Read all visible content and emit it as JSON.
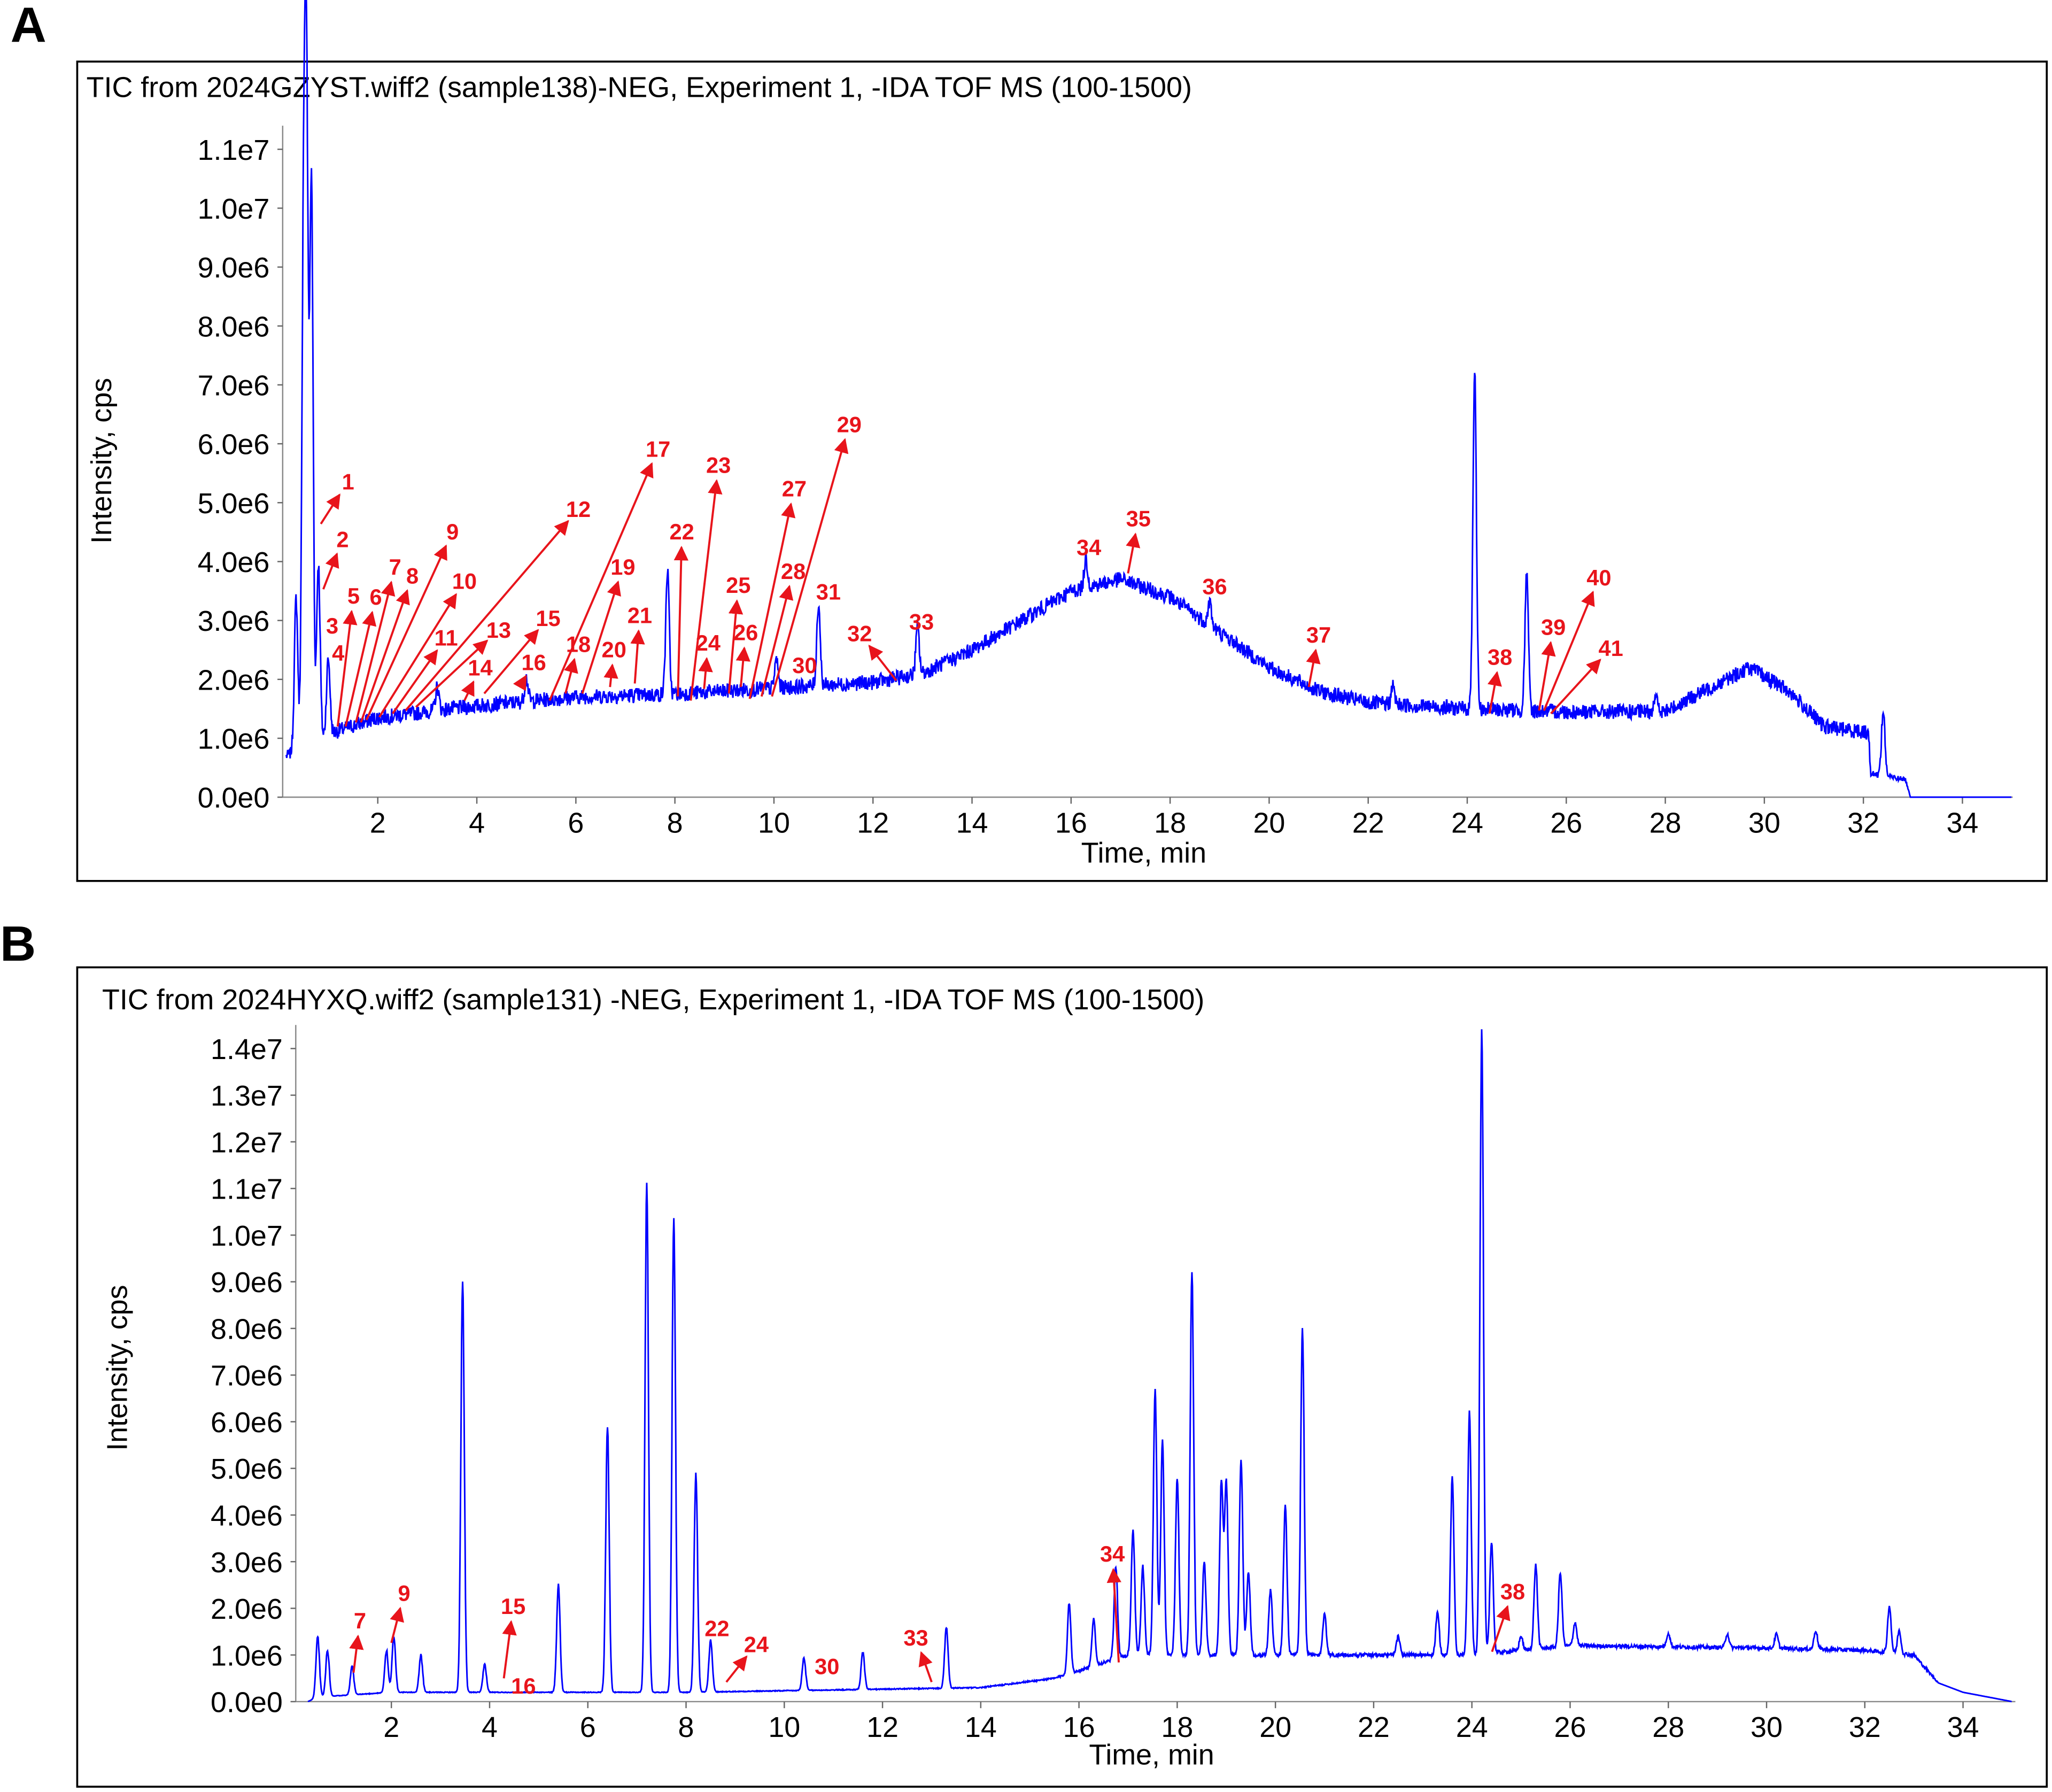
{
  "colors": {
    "trace": "#0000ff",
    "annotation": "#e8141b",
    "frame": "#000000"
  },
  "chart_data": [
    {
      "type": "line",
      "panel_label": "A",
      "title": "TIC from 2024GZYST.wiff2 (sample138)-NEG, Experiment 1, -IDA TOF MS (100-1500)",
      "xlabel": "Time, min",
      "ylabel": "Intensity, cps",
      "xlim": [
        0,
        35
      ],
      "ylim": [
        0,
        11000000.0
      ],
      "xticks": [
        2,
        4,
        6,
        8,
        10,
        12,
        14,
        16,
        18,
        20,
        22,
        24,
        26,
        28,
        30,
        32,
        34
      ],
      "yticks": [
        0,
        1000000.0,
        2000000.0,
        3000000.0,
        4000000.0,
        5000000.0,
        6000000.0,
        7000000.0,
        8000000.0,
        9000000.0,
        10000000.0,
        11000000.0
      ],
      "ytick_labels": [
        "0.0e0",
        "1.0e6",
        "2.0e6",
        "3.0e6",
        "4.0e6",
        "5.0e6",
        "6.0e6",
        "7.0e6",
        "8.0e6",
        "9.0e6",
        "1.0e7",
        "1.1e7"
      ],
      "grid": false,
      "baseline_e6": [
        [
          0.15,
          0.7
        ],
        [
          0.4,
          0.8
        ],
        [
          1.1,
          1.1
        ],
        [
          2,
          1.35
        ],
        [
          4,
          1.55
        ],
        [
          6,
          1.7
        ],
        [
          8,
          1.75
        ],
        [
          10,
          1.85
        ],
        [
          12,
          1.95
        ],
        [
          13,
          2.1
        ],
        [
          14,
          2.5
        ],
        [
          15,
          3.0
        ],
        [
          16,
          3.5
        ],
        [
          17,
          3.7
        ],
        [
          18,
          3.4
        ],
        [
          19,
          2.8
        ],
        [
          20,
          2.2
        ],
        [
          21,
          1.8
        ],
        [
          22,
          1.6
        ],
        [
          24,
          1.5
        ],
        [
          26,
          1.45
        ],
        [
          28,
          1.45
        ],
        [
          29,
          1.9
        ],
        [
          29.7,
          2.2
        ],
        [
          30.5,
          1.8
        ],
        [
          31.2,
          1.2
        ],
        [
          32.1,
          1.1
        ],
        [
          32.15,
          0.4
        ],
        [
          32.85,
          0.3
        ],
        [
          32.95,
          0
        ],
        [
          35,
          0
        ]
      ],
      "peaks_e6": [
        [
          0.35,
          2.6
        ],
        [
          0.5,
          7.9
        ],
        [
          0.56,
          10.6
        ],
        [
          0.66,
          9.5
        ],
        [
          0.8,
          3.0
        ],
        [
          1.0,
          1.3
        ],
        [
          3.2,
          0.4
        ],
        [
          5.0,
          0.4
        ],
        [
          7.85,
          2.1
        ],
        [
          10.05,
          0.5
        ],
        [
          10.9,
          1.4
        ],
        [
          12.9,
          0.8
        ],
        [
          16.3,
          0.5
        ],
        [
          18.8,
          0.4
        ],
        [
          22.5,
          0.3
        ],
        [
          24.15,
          5.8
        ],
        [
          25.2,
          2.3
        ],
        [
          27.8,
          0.3
        ],
        [
          32.4,
          1.1
        ]
      ],
      "annotations": [
        {
          "label": "1",
          "at": [
            1.4,
            5.36
          ],
          "from": [
            0.85,
            4.64
          ]
        },
        {
          "label": "2",
          "at": [
            1.29,
            4.38
          ],
          "from": [
            0.9,
            3.53
          ]
        },
        {
          "label": "3",
          "at": [
            1.08,
            2.91
          ]
        },
        {
          "label": "4",
          "at": [
            1.2,
            2.45
          ]
        },
        {
          "label": "5",
          "at": [
            1.51,
            3.42
          ],
          "from": [
            1.19,
            1.2
          ]
        },
        {
          "label": "6",
          "at": [
            1.96,
            3.4
          ],
          "from": [
            1.35,
            1.2
          ]
        },
        {
          "label": "7",
          "at": [
            2.35,
            3.91
          ],
          "from": [
            1.56,
            1.27
          ]
        },
        {
          "label": "8",
          "at": [
            2.7,
            3.76
          ],
          "from": [
            1.66,
            1.27
          ]
        },
        {
          "label": "9",
          "at": [
            3.51,
            4.51
          ],
          "from": [
            1.77,
            1.31
          ]
        },
        {
          "label": "10",
          "at": [
            3.75,
            3.67
          ],
          "from": [
            2.03,
            1.36
          ]
        },
        {
          "label": "11",
          "at": [
            3.38,
            2.71
          ],
          "from": [
            2.3,
            1.42
          ]
        },
        {
          "label": "12",
          "at": [
            6.05,
            4.89
          ],
          "from": [
            2.56,
            1.47
          ]
        },
        {
          "label": "13",
          "at": [
            4.44,
            2.84
          ],
          "from": [
            2.77,
            1.53
          ]
        },
        {
          "label": "14",
          "at": [
            4.07,
            2.2
          ],
          "from": [
            3.75,
            1.64
          ]
        },
        {
          "label": "15",
          "at": [
            5.44,
            3.04
          ],
          "from": [
            4.15,
            1.76
          ]
        },
        {
          "label": "16",
          "at": [
            5.15,
            2.29
          ],
          "from": [
            4.94,
            1.98
          ]
        },
        {
          "label": "17",
          "at": [
            7.66,
            5.91
          ],
          "from": [
            5.47,
            1.64
          ]
        },
        {
          "label": "18",
          "at": [
            6.05,
            2.6
          ],
          "from": [
            5.79,
            1.76
          ]
        },
        {
          "label": "19",
          "at": [
            6.95,
            3.91
          ],
          "from": [
            6.13,
            1.76
          ]
        },
        {
          "label": "20",
          "at": [
            6.77,
            2.51
          ],
          "from": [
            6.69,
            1.87
          ]
        },
        {
          "label": "21",
          "at": [
            7.29,
            3.09
          ],
          "from": [
            7.19,
            1.93
          ]
        },
        {
          "label": "22",
          "at": [
            8.14,
            4.51
          ],
          "from": [
            8.06,
            1.71
          ]
        },
        {
          "label": "23",
          "at": [
            8.88,
            5.64
          ],
          "from": [
            8.32,
            1.64
          ]
        },
        {
          "label": "24",
          "at": [
            8.67,
            2.62
          ],
          "from": [
            8.59,
            1.84
          ]
        },
        {
          "label": "25",
          "at": [
            9.28,
            3.6
          ],
          "from": [
            9.09,
            1.76
          ]
        },
        {
          "label": "26",
          "at": [
            9.43,
            2.8
          ],
          "from": [
            9.33,
            1.87
          ]
        },
        {
          "label": "27",
          "at": [
            10.41,
            5.24
          ],
          "from": [
            9.51,
            1.67
          ]
        },
        {
          "label": "28",
          "at": [
            10.39,
            3.84
          ],
          "from": [
            9.75,
            1.71
          ]
        },
        {
          "label": "29",
          "at": [
            11.52,
            6.33
          ],
          "from": [
            9.96,
            1.71
          ]
        },
        {
          "label": "30",
          "at": [
            10.62,
            2.24
          ]
        },
        {
          "label": "31",
          "at": [
            11.1,
            3.49
          ]
        },
        {
          "label": "32",
          "at": [
            11.73,
            2.78
          ],
          "from": [
            12.47,
            1.98
          ]
        },
        {
          "label": "33",
          "at": [
            12.98,
            2.98
          ]
        },
        {
          "label": "34",
          "at": [
            16.36,
            4.24
          ]
        },
        {
          "label": "35",
          "at": [
            17.36,
            4.73
          ],
          "from": [
            17.15,
            3.8
          ]
        },
        {
          "label": "36",
          "at": [
            18.9,
            3.58
          ]
        },
        {
          "label": "37",
          "at": [
            21.0,
            2.76
          ],
          "from": [
            20.8,
            1.87
          ]
        },
        {
          "label": "38",
          "at": [
            24.66,
            2.38
          ],
          "from": [
            24.45,
            1.42
          ]
        },
        {
          "label": "39",
          "at": [
            25.74,
            2.89
          ],
          "from": [
            25.45,
            1.47
          ]
        },
        {
          "label": "40",
          "at": [
            26.66,
            3.73
          ],
          "from": [
            25.55,
            1.47
          ]
        },
        {
          "label": "41",
          "at": [
            26.9,
            2.53
          ],
          "from": [
            25.69,
            1.42
          ]
        }
      ]
    },
    {
      "type": "line",
      "panel_label": "B",
      "title": "TIC from 2024HYXQ.wiff2 (sample131) -NEG, Experiment 1, -IDA TOF MS (100-1500)",
      "xlabel": "Time, min",
      "ylabel": "Intensity, cps",
      "xlim": [
        0,
        35
      ],
      "ylim": [
        0,
        14000000.0
      ],
      "xticks": [
        2,
        4,
        6,
        8,
        10,
        12,
        14,
        16,
        18,
        20,
        22,
        24,
        26,
        28,
        30,
        32,
        34
      ],
      "yticks": [
        0,
        1000000.0,
        2000000.0,
        3000000.0,
        4000000.0,
        5000000.0,
        6000000.0,
        7000000.0,
        8000000.0,
        9000000.0,
        10000000.0,
        11000000.0,
        12000000.0,
        13000000.0,
        14000000.0
      ],
      "ytick_labels": [
        "0.0e0",
        "1.0e6",
        "2.0e6",
        "3.0e6",
        "4.0e6",
        "5.0e6",
        "6.0e6",
        "7.0e6",
        "8.0e6",
        "9.0e6",
        "1.0e7",
        "1.1e7",
        "1.2e7",
        "1.3e7",
        "1.4e7"
      ],
      "grid": false,
      "baseline_e6": [
        [
          0.3,
          0
        ],
        [
          0.5,
          0.1
        ],
        [
          2,
          0.2
        ],
        [
          8,
          0.2
        ],
        [
          14,
          0.3
        ],
        [
          15.5,
          0.5
        ],
        [
          17,
          1.0
        ],
        [
          20,
          1.0
        ],
        [
          22,
          1.0
        ],
        [
          24,
          1.0
        ],
        [
          25,
          1.1
        ],
        [
          26,
          1.2
        ],
        [
          30,
          1.15
        ],
        [
          32,
          1.1
        ],
        [
          33,
          1.0
        ],
        [
          33.5,
          0.4
        ],
        [
          34,
          0.2
        ],
        [
          35,
          0
        ]
      ],
      "peaks_e6": [
        [
          0.5,
          1.3
        ],
        [
          0.7,
          1.0
        ],
        [
          1.2,
          0.6
        ],
        [
          1.9,
          0.9
        ],
        [
          2.05,
          1.2
        ],
        [
          2.6,
          0.8
        ],
        [
          3.45,
          8.8
        ],
        [
          3.9,
          0.6
        ],
        [
          5.4,
          2.3
        ],
        [
          6.4,
          5.7
        ],
        [
          7.2,
          10.9
        ],
        [
          7.75,
          10.2
        ],
        [
          8.2,
          4.7
        ],
        [
          8.5,
          1.1
        ],
        [
          10.4,
          0.7
        ],
        [
          11.6,
          0.8
        ],
        [
          13.3,
          1.3
        ],
        [
          15.8,
          1.5
        ],
        [
          16.3,
          1.0
        ],
        [
          16.75,
          2.0
        ],
        [
          17.1,
          2.7
        ],
        [
          17.3,
          1.9
        ],
        [
          17.55,
          5.7
        ],
        [
          17.7,
          4.6
        ],
        [
          18.0,
          3.8
        ],
        [
          18.3,
          8.2
        ],
        [
          18.55,
          2.0
        ],
        [
          18.9,
          3.7
        ],
        [
          19.0,
          3.7
        ],
        [
          19.3,
          4.2
        ],
        [
          19.45,
          1.8
        ],
        [
          19.9,
          1.4
        ],
        [
          20.2,
          3.2
        ],
        [
          20.55,
          7.0
        ],
        [
          21.0,
          0.9
        ],
        [
          22.5,
          0.4
        ],
        [
          23.3,
          0.9
        ],
        [
          23.6,
          3.8
        ],
        [
          23.95,
          5.2
        ],
        [
          24.2,
          13.4
        ],
        [
          24.4,
          2.4
        ],
        [
          25.0,
          0.3
        ],
        [
          25.3,
          1.8
        ],
        [
          25.8,
          1.6
        ],
        [
          26.1,
          0.5
        ],
        [
          28,
          0.3
        ],
        [
          29.2,
          0.3
        ],
        [
          30.2,
          0.3
        ],
        [
          31,
          0.4
        ],
        [
          32.5,
          1.0
        ],
        [
          32.7,
          0.5
        ]
      ],
      "annotations": [
        {
          "label": "7",
          "at": [
            1.36,
            1.74
          ],
          "from": [
            1.23,
            0.62
          ]
        },
        {
          "label": "9",
          "at": [
            2.26,
            2.33
          ],
          "from": [
            2.0,
            1.26
          ]
        },
        {
          "label": "15",
          "at": [
            4.48,
            2.05
          ],
          "from": [
            4.29,
            0.5
          ]
        },
        {
          "label": "16",
          "at": [
            4.69,
            0.34
          ]
        },
        {
          "label": "22",
          "at": [
            8.63,
            1.57
          ]
        },
        {
          "label": "24",
          "at": [
            9.43,
            1.23
          ],
          "from": [
            8.82,
            0.42
          ]
        },
        {
          "label": "30",
          "at": [
            10.87,
            0.76
          ]
        },
        {
          "label": "33",
          "at": [
            12.68,
            1.37
          ],
          "from": [
            13.0,
            0.42
          ]
        },
        {
          "label": "34",
          "at": [
            16.68,
            3.17
          ],
          "from": [
            16.81,
            0.84
          ]
        },
        {
          "label": "38",
          "at": [
            24.83,
            2.36
          ],
          "from": [
            24.41,
            1.07
          ]
        }
      ]
    }
  ]
}
